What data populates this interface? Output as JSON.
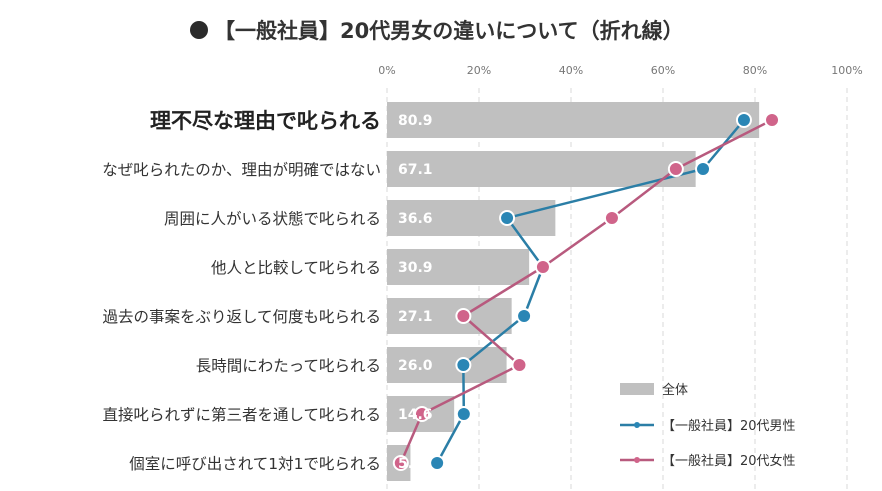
{
  "chart_data": {
    "type": "bar",
    "title": "【一般社員】20代男女の違いについて（折れ線）",
    "title_bullet": "●",
    "xlabel": "",
    "ylabel": "",
    "xlim": [
      0,
      100
    ],
    "x_ticks": [
      0,
      20,
      40,
      60,
      80,
      100
    ],
    "x_tick_labels": [
      "0%",
      "20%",
      "40%",
      "60%",
      "80%",
      "100%"
    ],
    "grid": true,
    "orientation": "horizontal",
    "categories": [
      "理不尽な理由で叱られる",
      "なぜ叱られたのか、理由が明確ではない",
      "周囲に人がいる状態で叱られる",
      "他人と比較して叱られる",
      "過去の事案をぶり返して何度も叱られる",
      "長時間にわたって叱られる",
      "直接叱られずに第三者を通して叱られる",
      "個室に呼び出されて1対1で叱られる"
    ],
    "emphasized_category_index": 0,
    "series": [
      {
        "name": "全体",
        "kind": "bar",
        "color": "#c0c0c0",
        "values": [
          80.9,
          67.1,
          36.6,
          30.9,
          27.1,
          26.0,
          14.6,
          5.1
        ],
        "labels": [
          "80.9",
          "67.1",
          "36.6",
          "30.9",
          "27.1",
          "26.0",
          "14.6",
          "5.1"
        ]
      },
      {
        "name": "【一般社員】20代男性",
        "kind": "line",
        "color": "#2a86b5",
        "line_color": "#2b7ea6",
        "values": [
          77.6,
          68.7,
          26.1,
          33.9,
          29.8,
          16.6,
          16.7,
          10.9
        ]
      },
      {
        "name": "【一般社員】20代女性",
        "kind": "line",
        "color": "#d0648a",
        "line_color": "#b85a7e",
        "values": [
          83.7,
          62.8,
          48.9,
          33.9,
          16.6,
          28.8,
          7.6,
          3.0
        ]
      }
    ],
    "legend": {
      "position": "bottom-right",
      "items": [
        "全体",
        "【一般社員】20代男性",
        "【一般社員】20代女性"
      ]
    }
  }
}
